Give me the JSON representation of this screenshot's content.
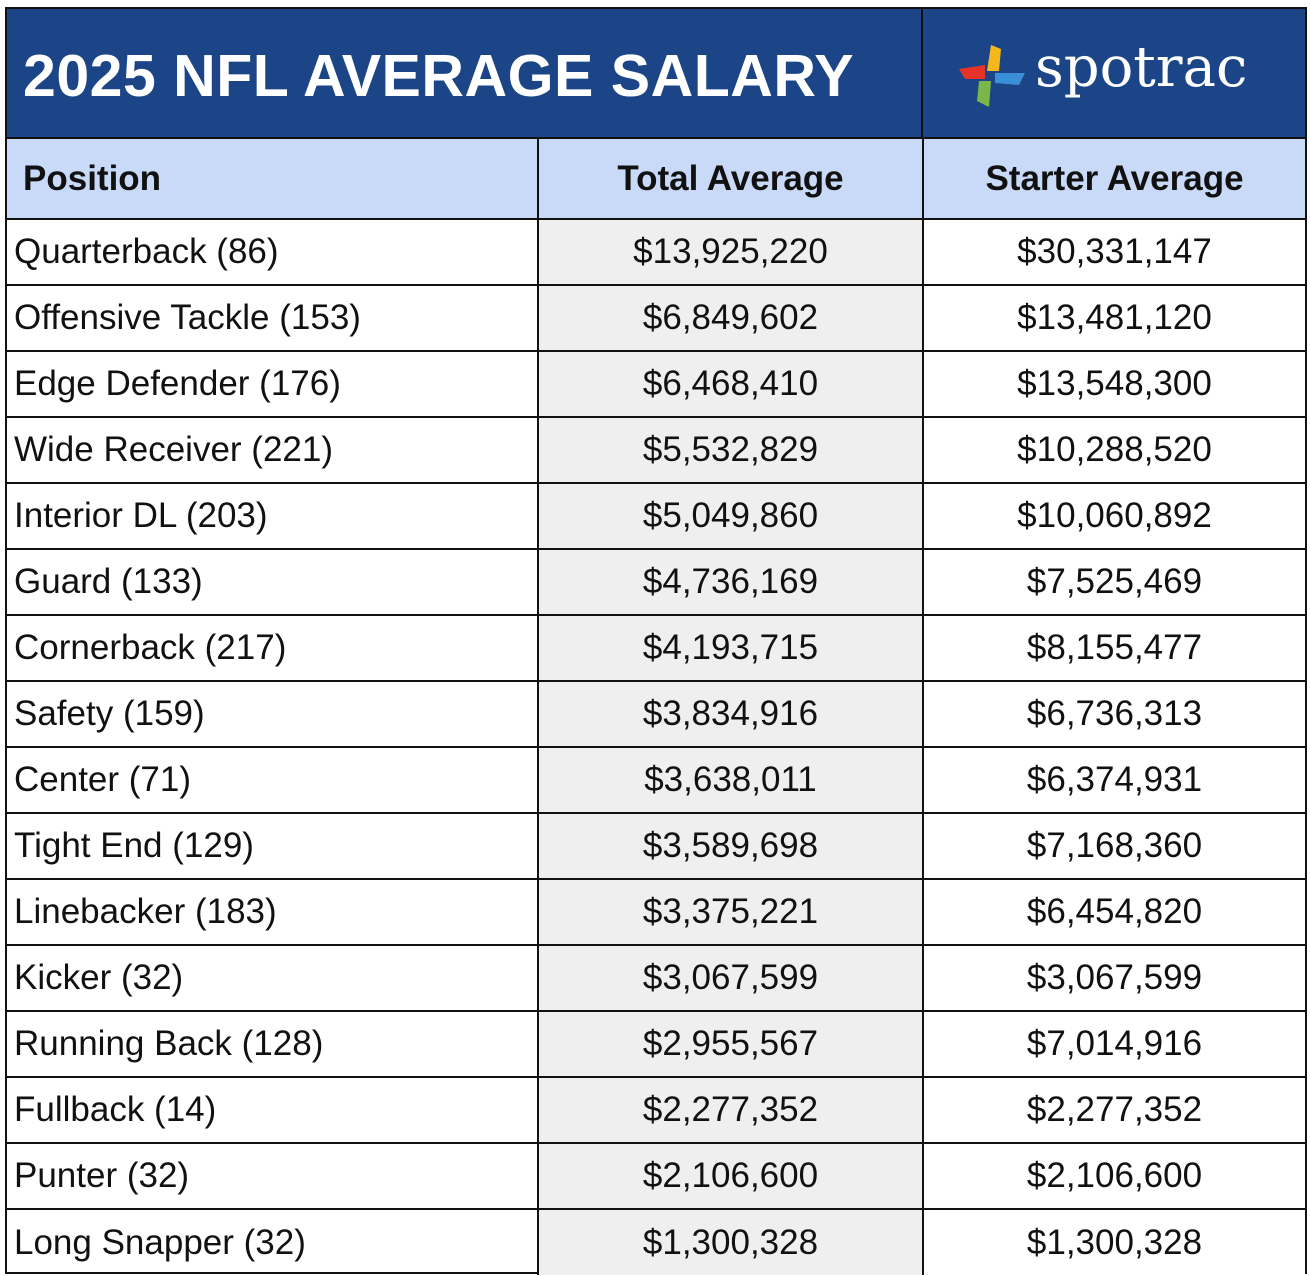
{
  "header": {
    "title": "2025 NFL AVERAGE SALARY",
    "brand": "spotrac",
    "logo_icon": "spotrac-pinwheel-icon"
  },
  "colors": {
    "title_bg": "#1c4587",
    "header_row_bg": "#c9daf8",
    "total_column_bg": "#efefef",
    "logo_red": "#e6332a",
    "logo_yellow": "#f4b81c",
    "logo_blue": "#3a8fd6",
    "logo_green": "#7ab648"
  },
  "chart_data": {
    "type": "table",
    "title": "2025 NFL AVERAGE SALARY",
    "columns": [
      "Position",
      "Total Average",
      "Starter Average"
    ],
    "rows": [
      {
        "position": "Quarterback (86)",
        "total": "$13,925,220",
        "starter": "$30,331,147"
      },
      {
        "position": "Offensive Tackle (153)",
        "total": "$6,849,602",
        "starter": "$13,481,120"
      },
      {
        "position": "Edge Defender (176)",
        "total": "$6,468,410",
        "starter": "$13,548,300"
      },
      {
        "position": "Wide Receiver (221)",
        "total": "$5,532,829",
        "starter": "$10,288,520"
      },
      {
        "position": "Interior DL (203)",
        "total": "$5,049,860",
        "starter": "$10,060,892"
      },
      {
        "position": "Guard (133)",
        "total": "$4,736,169",
        "starter": "$7,525,469"
      },
      {
        "position": "Cornerback (217)",
        "total": "$4,193,715",
        "starter": "$8,155,477"
      },
      {
        "position": "Safety (159)",
        "total": "$3,834,916",
        "starter": "$6,736,313"
      },
      {
        "position": "Center (71)",
        "total": "$3,638,011",
        "starter": "$6,374,931"
      },
      {
        "position": "Tight End (129)",
        "total": "$3,589,698",
        "starter": "$7,168,360"
      },
      {
        "position": "Linebacker (183)",
        "total": "$3,375,221",
        "starter": "$6,454,820"
      },
      {
        "position": "Kicker (32)",
        "total": "$3,067,599",
        "starter": "$3,067,599"
      },
      {
        "position": "Running Back (128)",
        "total": "$2,955,567",
        "starter": "$7,014,916"
      },
      {
        "position": "Fullback (14)",
        "total": "$2,277,352",
        "starter": "$2,277,352"
      },
      {
        "position": "Punter (32)",
        "total": "$2,106,600",
        "starter": "$2,106,600"
      },
      {
        "position": "Long Snapper (32)",
        "total": "$1,300,328",
        "starter": "$1,300,328"
      }
    ]
  }
}
